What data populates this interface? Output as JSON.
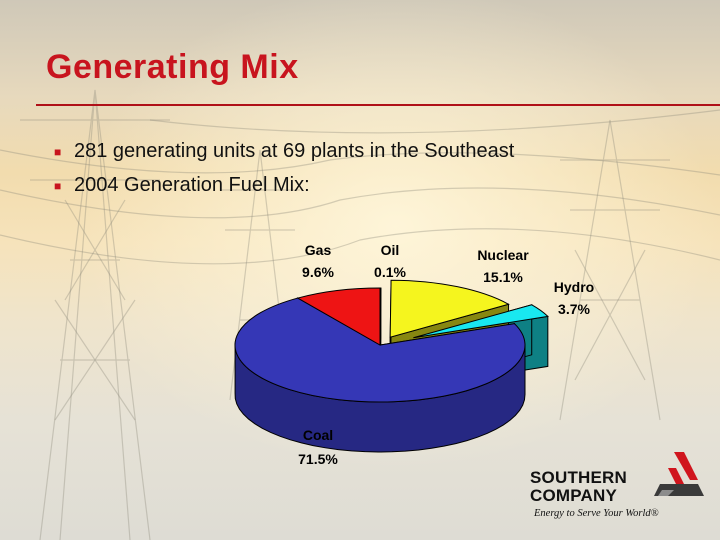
{
  "slide": {
    "title": "Generating Mix",
    "bullets": [
      "281 generating units at 69 plants in the Southeast",
      "2004 Generation Fuel Mix:"
    ]
  },
  "chart_data": {
    "type": "pie",
    "slices": [
      {
        "name": "Coal",
        "label": "Coal",
        "value_label": "71.5%",
        "value": 71.5,
        "color": "#3537b6"
      },
      {
        "name": "Gas",
        "label": "Gas",
        "value_label": "9.6%",
        "value": 9.6,
        "color": "#ee1414"
      },
      {
        "name": "Oil",
        "label": "Oil",
        "value_label": "0.1%",
        "value": 0.1,
        "color": "#f4f4f4"
      },
      {
        "name": "Nuclear",
        "label": "Nuclear",
        "value_label": "15.1%",
        "value": 15.1,
        "color": "#f5f51e"
      },
      {
        "name": "Hydro",
        "label": "Hydro",
        "value_label": "3.7%",
        "value": 3.7,
        "color": "#19e8f0"
      }
    ],
    "exploded": [
      "Coal",
      "Nuclear",
      "Hydro"
    ],
    "style": "3d"
  },
  "logo": {
    "name_line1": "SOUTHERN",
    "name_line2": "COMPANY",
    "tagline": "Energy to Serve Your World®"
  },
  "colors": {
    "title": "#c8141e",
    "bullet_marker": "#c8141e",
    "text": "#111111"
  }
}
